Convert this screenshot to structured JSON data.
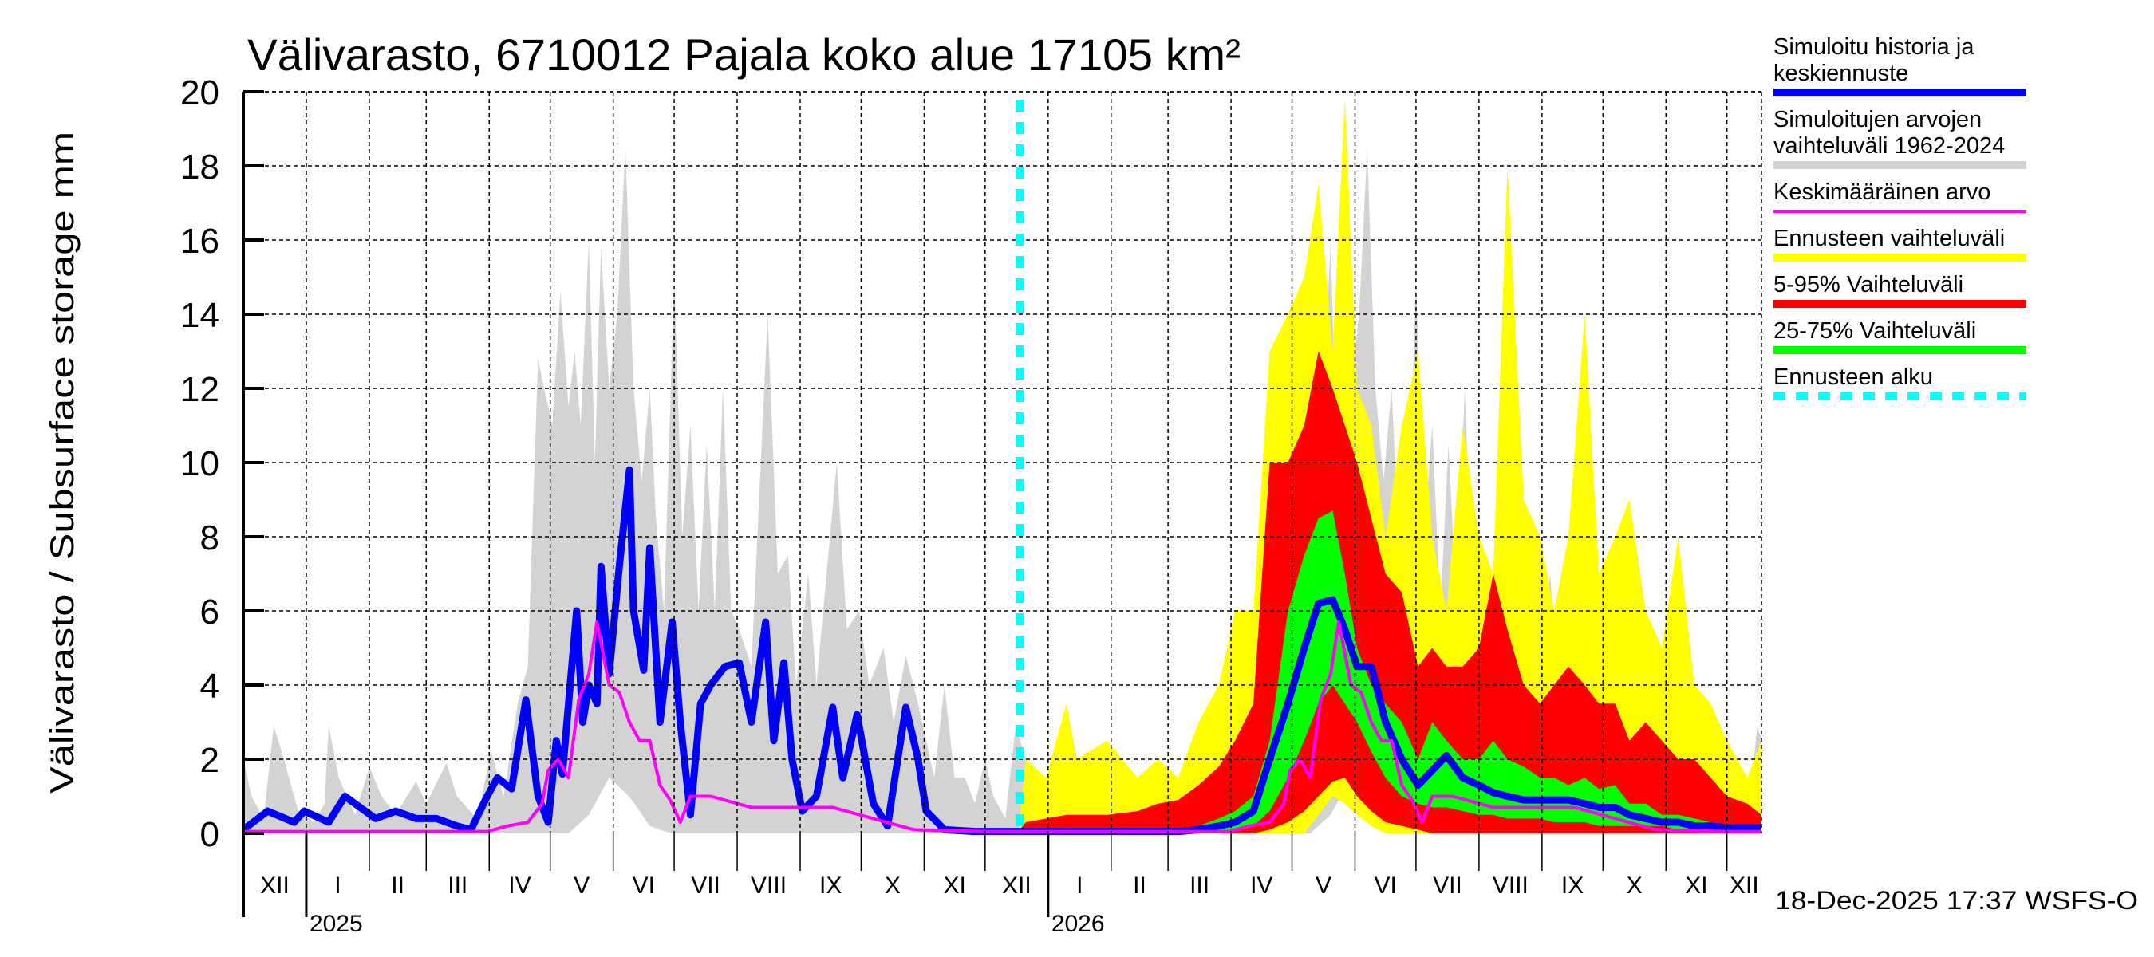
{
  "chart_data": {
    "type": "area",
    "title": "Välivarasto, 6710012 Pajala koko alue 17105 km²",
    "ylabel": "Välivarasto / Subsurface storage  mm",
    "xlabel": "",
    "ylim": [
      0,
      20
    ],
    "y_ticks": [
      0,
      2,
      4,
      6,
      8,
      10,
      12,
      14,
      16,
      18,
      20
    ],
    "y_tick_labels": [
      "0",
      "2",
      "4",
      "6",
      "8",
      "10",
      "12",
      "14",
      "16",
      "18",
      "20"
    ],
    "x_unit": "days",
    "xlim": [
      0,
      747
    ],
    "grid": true,
    "legend_placement": "right",
    "month_lengths": [
      31,
      31,
      28,
      31,
      30,
      31,
      30,
      31,
      31,
      30,
      31,
      30,
      31,
      31,
      28,
      31,
      30,
      31,
      30,
      31,
      31,
      30,
      31,
      30,
      31
    ],
    "x_tick_labels": [
      "XII",
      "I",
      "II",
      "III",
      "IV",
      "V",
      "VI",
      "VII",
      "VIII",
      "IX",
      "X",
      "XI",
      "XII",
      "I",
      "II",
      "III",
      "IV",
      "V",
      "VI",
      "VII",
      "VIII",
      "IX",
      "X",
      "XI",
      "XII"
    ],
    "year_labels": [
      {
        "label": "2025",
        "month_index": 1
      },
      {
        "label": "2026",
        "month_index": 13
      }
    ],
    "forecast_start_day": 382,
    "timestamp": "18-Dec-2025 17:37 WSFS-O",
    "legend": [
      {
        "lines": [
          "Simuloitu historia ja",
          "keskiennuste"
        ],
        "color": "#0000ff",
        "style": "solid"
      },
      {
        "lines": [
          "Simuloitujen arvojen",
          "vaihteluväli 1962-2024"
        ],
        "color": "#d3d3d3",
        "style": "solid"
      },
      {
        "lines": [
          "Keskimääräinen arvo"
        ],
        "color": "#ff00ff",
        "style": "thin"
      },
      {
        "lines": [
          "Ennusteen vaihteluväli"
        ],
        "color": "#ffff00",
        "style": "solid"
      },
      {
        "lines": [
          "5-95% Vaihteluväli"
        ],
        "color": "#ff0000",
        "style": "solid"
      },
      {
        "lines": [
          "25-75% Vaihteluväli"
        ],
        "color": "#00ff00",
        "style": "solid"
      },
      {
        "lines": [
          "Ennusteen alku"
        ],
        "color": "#00ffff",
        "style": "dashed"
      }
    ],
    "series": {
      "climatology_range": {
        "name": "Simuloitujen arvojen vaihteluväli 1962-2024",
        "repeat_yearly": true,
        "max": [
          [
            0,
            2.0
          ],
          [
            4,
            1.0
          ],
          [
            10,
            0.4
          ],
          [
            15,
            2.9
          ],
          [
            20,
            2.0
          ],
          [
            27,
            0.6
          ],
          [
            35,
            0.3
          ],
          [
            40,
            0.8
          ],
          [
            42,
            2.9
          ],
          [
            47,
            1.5
          ],
          [
            55,
            0.5
          ],
          [
            62,
            1.8
          ],
          [
            68,
            1.0
          ],
          [
            75,
            0.5
          ],
          [
            85,
            1.4
          ],
          [
            90,
            0.8
          ],
          [
            100,
            1.9
          ],
          [
            105,
            1.0
          ],
          [
            115,
            0.4
          ],
          [
            122,
            2.2
          ],
          [
            128,
            1.0
          ],
          [
            135,
            3.5
          ],
          [
            140,
            4.5
          ],
          [
            145,
            12.8
          ],
          [
            148,
            12.0
          ],
          [
            152,
            11.0
          ],
          [
            156,
            14.6
          ],
          [
            160,
            11.5
          ],
          [
            163,
            13.0
          ],
          [
            166,
            11.0
          ],
          [
            170,
            16.0
          ],
          [
            173,
            10.0
          ],
          [
            176,
            15.8
          ],
          [
            180,
            12.0
          ],
          [
            184,
            14.0
          ],
          [
            188,
            18.5
          ],
          [
            192,
            12.0
          ],
          [
            196,
            9.5
          ],
          [
            200,
            12.0
          ],
          [
            203,
            8.5
          ],
          [
            207,
            6.0
          ],
          [
            212,
            15.0
          ],
          [
            216,
            8.0
          ],
          [
            220,
            11.0
          ],
          [
            224,
            6.0
          ],
          [
            228,
            10.5
          ],
          [
            232,
            6.0
          ],
          [
            236,
            12.0
          ],
          [
            240,
            6.0
          ],
          [
            244,
            5.5
          ],
          [
            250,
            4.5
          ],
          [
            258,
            14.0
          ],
          [
            263,
            7.0
          ],
          [
            268,
            7.5
          ],
          [
            272,
            4.0
          ],
          [
            278,
            7.0
          ],
          [
            282,
            4.0
          ],
          [
            292,
            10.0
          ],
          [
            297,
            5.5
          ],
          [
            303,
            6.0
          ],
          [
            308,
            4.0
          ],
          [
            315,
            5.0
          ],
          [
            320,
            3.0
          ],
          [
            326,
            4.8
          ],
          [
            332,
            3.5
          ],
          [
            340,
            1.5
          ],
          [
            345,
            4.0
          ],
          [
            350,
            1.5
          ],
          [
            355,
            1.5
          ],
          [
            360,
            0.8
          ],
          [
            365,
            2.0
          ]
        ],
        "min": [
          [
            0,
            0
          ],
          [
            160,
            0
          ],
          [
            170,
            0.5
          ],
          [
            180,
            1.5
          ],
          [
            190,
            1.0
          ],
          [
            200,
            0.2
          ],
          [
            210,
            0
          ],
          [
            365,
            0
          ]
        ]
      },
      "mean": {
        "name": "Keskimääräinen arvo",
        "repeat_yearly": true,
        "values": [
          [
            0,
            0.05
          ],
          [
            120,
            0.05
          ],
          [
            130,
            0.2
          ],
          [
            140,
            0.3
          ],
          [
            147,
            0.8
          ],
          [
            150,
            1.7
          ],
          [
            155,
            2.0
          ],
          [
            160,
            1.5
          ],
          [
            165,
            3.6
          ],
          [
            170,
            4.3
          ],
          [
            174,
            5.7
          ],
          [
            180,
            4.0
          ],
          [
            185,
            3.8
          ],
          [
            190,
            3.0
          ],
          [
            195,
            2.5
          ],
          [
            200,
            2.5
          ],
          [
            205,
            1.3
          ],
          [
            210,
            0.9
          ],
          [
            215,
            0.3
          ],
          [
            220,
            1.0
          ],
          [
            230,
            1.0
          ],
          [
            250,
            0.7
          ],
          [
            270,
            0.7
          ],
          [
            290,
            0.7
          ],
          [
            310,
            0.4
          ],
          [
            330,
            0.1
          ],
          [
            365,
            0.05
          ]
        ]
      },
      "simulated_history": {
        "name": "Simuloitu historia",
        "values": [
          [
            0,
            0.1
          ],
          [
            12,
            0.6
          ],
          [
            25,
            0.3
          ],
          [
            30,
            0.6
          ],
          [
            42,
            0.3
          ],
          [
            50,
            1.0
          ],
          [
            65,
            0.4
          ],
          [
            75,
            0.6
          ],
          [
            85,
            0.4
          ],
          [
            95,
            0.4
          ],
          [
            105,
            0.2
          ],
          [
            112,
            0.1
          ],
          [
            120,
            1.0
          ],
          [
            125,
            1.5
          ],
          [
            132,
            1.2
          ],
          [
            139,
            3.6
          ],
          [
            145,
            1.0
          ],
          [
            150,
            0.3
          ],
          [
            154,
            2.5
          ],
          [
            157,
            1.6
          ],
          [
            164,
            6.0
          ],
          [
            167,
            3.0
          ],
          [
            170,
            4.0
          ],
          [
            174,
            3.5
          ],
          [
            176,
            7.2
          ],
          [
            180,
            4.3
          ],
          [
            185,
            7.2
          ],
          [
            190,
            9.8
          ],
          [
            192,
            6.0
          ],
          [
            197,
            4.4
          ],
          [
            200,
            7.7
          ],
          [
            205,
            3.0
          ],
          [
            211,
            5.7
          ],
          [
            215,
            3.0
          ],
          [
            220,
            0.5
          ],
          [
            225,
            3.5
          ],
          [
            230,
            4.0
          ],
          [
            237,
            4.5
          ],
          [
            244,
            4.6
          ],
          [
            250,
            3.0
          ],
          [
            257,
            5.7
          ],
          [
            261,
            2.5
          ],
          [
            266,
            4.6
          ],
          [
            270,
            2.0
          ],
          [
            275,
            0.6
          ],
          [
            282,
            1.0
          ],
          [
            290,
            3.4
          ],
          [
            295,
            1.5
          ],
          [
            302,
            3.2
          ],
          [
            310,
            0.8
          ],
          [
            317,
            0.2
          ],
          [
            322,
            2.0
          ],
          [
            326,
            3.4
          ],
          [
            332,
            2.0
          ],
          [
            336,
            0.6
          ],
          [
            345,
            0.1
          ],
          [
            360,
            0.05
          ],
          [
            382,
            0.05
          ]
        ]
      },
      "forecast": {
        "x": [
          382,
          385,
          395,
          405,
          410,
          425,
          440,
          450,
          460,
          470,
          480,
          488,
          497,
          505,
          514,
          522,
          529,
          536,
          542,
          548,
          555,
          562,
          570,
          578,
          585,
          592,
          600,
          608,
          615,
          622,
          630,
          638,
          645,
          652,
          660,
          667,
          675,
          682,
          690,
          698,
          706,
          714,
          722,
          730,
          740,
          747
        ],
        "max": [
          0.3,
          2.0,
          1.5,
          3.5,
          2.0,
          2.5,
          1.5,
          2.0,
          1.5,
          3.0,
          4.0,
          6.0,
          6.0,
          13.0,
          14.0,
          15.0,
          17.5,
          13.0,
          19.8,
          12.0,
          11.0,
          8.0,
          11.0,
          13.0,
          8.0,
          6.0,
          11.0,
          8.0,
          7.0,
          18.0,
          9.0,
          8.0,
          6.0,
          8.0,
          14.0,
          7.0,
          8.0,
          9.0,
          6.0,
          5.0,
          8.0,
          4.0,
          3.5,
          2.5,
          1.5,
          2.5
        ],
        "p95": [
          0.1,
          0.3,
          0.4,
          0.5,
          0.5,
          0.5,
          0.6,
          0.8,
          0.9,
          1.3,
          1.8,
          2.5,
          3.5,
          10.0,
          10.0,
          11.0,
          13.0,
          12.0,
          11.0,
          10.0,
          8.5,
          7.0,
          6.5,
          4.5,
          5.0,
          4.5,
          4.5,
          5.0,
          7.0,
          5.5,
          4.0,
          3.5,
          4.0,
          4.5,
          4.0,
          3.5,
          3.5,
          2.5,
          3.0,
          2.5,
          2.0,
          2.0,
          1.5,
          1.0,
          0.8,
          0.5
        ],
        "p75": [
          0.05,
          0.1,
          0.1,
          0.1,
          0.1,
          0.1,
          0.1,
          0.1,
          0.1,
          0.2,
          0.4,
          0.6,
          1.0,
          2.5,
          6.0,
          7.5,
          8.5,
          8.7,
          7.0,
          5.0,
          4.0,
          3.5,
          3.0,
          2.0,
          3.0,
          2.5,
          2.0,
          2.0,
          2.5,
          2.0,
          1.8,
          1.5,
          1.5,
          1.3,
          1.5,
          1.2,
          1.3,
          0.8,
          0.8,
          0.5,
          0.5,
          0.4,
          0.3,
          0.2,
          0.2,
          0.2
        ],
        "median": [
          0.05,
          0.05,
          0.05,
          0.05,
          0.05,
          0.05,
          0.05,
          0.05,
          0.05,
          0.1,
          0.2,
          0.3,
          0.6,
          2.0,
          3.5,
          5.0,
          6.2,
          6.3,
          5.5,
          4.5,
          4.5,
          3.0,
          2.0,
          1.3,
          1.7,
          2.1,
          1.5,
          1.3,
          1.1,
          1.0,
          0.9,
          0.9,
          0.9,
          0.9,
          0.8,
          0.7,
          0.7,
          0.5,
          0.4,
          0.3,
          0.3,
          0.2,
          0.2,
          0.15,
          0.15,
          0.15
        ],
        "p25": [
          0,
          0,
          0,
          0,
          0,
          0,
          0,
          0,
          0,
          0,
          0,
          0.1,
          0.2,
          0.6,
          1.5,
          2.5,
          3.5,
          4.0,
          3.5,
          3.0,
          2.2,
          1.5,
          1.0,
          0.8,
          0.7,
          0.7,
          0.6,
          0.5,
          0.5,
          0.4,
          0.4,
          0.4,
          0.3,
          0.3,
          0.3,
          0.2,
          0.2,
          0.2,
          0.2,
          0.2,
          0.1,
          0.1,
          0.1,
          0.1,
          0.1,
          0.1
        ],
        "p5": [
          0,
          0,
          0,
          0,
          0,
          0,
          0,
          0,
          0,
          0,
          0,
          0,
          0,
          0.1,
          0.3,
          0.6,
          1.0,
          1.4,
          1.5,
          1.0,
          0.6,
          0.3,
          0.2,
          0.1,
          0,
          0,
          0,
          0,
          0,
          0,
          0,
          0,
          0,
          0,
          0,
          0,
          0,
          0,
          0,
          0,
          0,
          0,
          0,
          0,
          0,
          0
        ],
        "min": [
          0,
          0,
          0,
          0,
          0,
          0,
          0,
          0,
          0,
          0,
          0,
          0,
          0,
          0,
          0,
          0,
          0.5,
          1.0,
          0.8,
          0.5,
          0.2,
          0,
          0,
          0,
          0,
          0,
          0,
          0,
          0,
          0,
          0,
          0,
          0,
          0,
          0,
          0,
          0,
          0,
          0,
          0,
          0,
          0,
          0,
          0,
          0,
          0
        ]
      }
    }
  }
}
